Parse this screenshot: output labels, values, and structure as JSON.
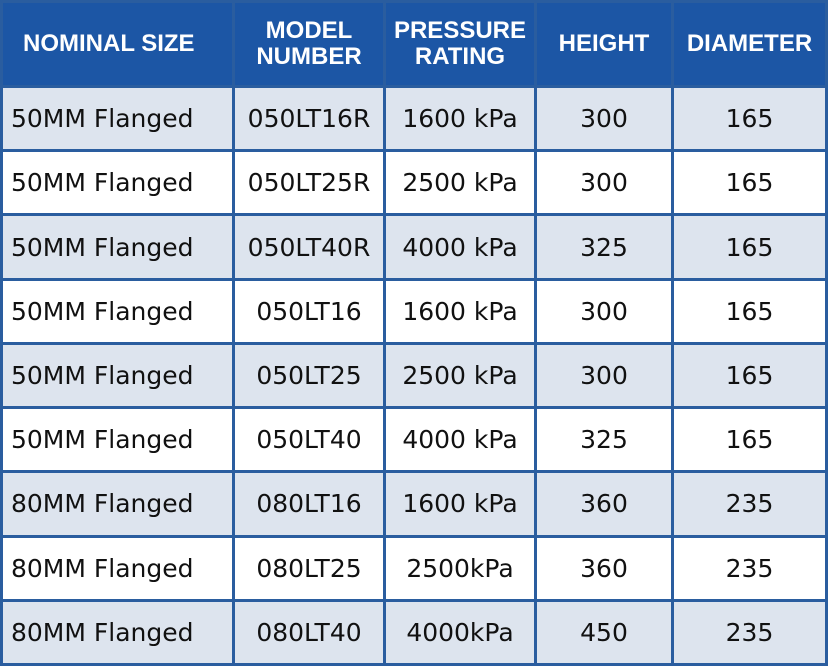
{
  "table": {
    "header": [
      "NOMINAL SIZE",
      "MODEL NUMBER",
      "PRESSURE RATING",
      "HEIGHT",
      "DIAMETER"
    ],
    "rows": [
      [
        "50MM Flanged",
        "050LT16R",
        "1600 kPa",
        "300",
        "165"
      ],
      [
        "50MM Flanged",
        "050LT25R",
        "2500 kPa",
        "300",
        "165"
      ],
      [
        "50MM Flanged",
        "050LT40R",
        "4000 kPa",
        "325",
        "165"
      ],
      [
        "50MM Flanged",
        "050LT16",
        "1600 kPa",
        "300",
        "165"
      ],
      [
        "50MM Flanged",
        "050LT25",
        "2500 kPa",
        "300",
        "165"
      ],
      [
        "50MM Flanged",
        "050LT40",
        "4000 kPa",
        "325",
        "165"
      ],
      [
        "80MM Flanged",
        "080LT16",
        "1600 kPa",
        "360",
        "235"
      ],
      [
        "80MM Flanged",
        "080LT25",
        "2500kPa",
        "360",
        "235"
      ],
      [
        "80MM Flanged",
        "080LT40",
        "4000kPa",
        "450",
        "235"
      ]
    ]
  }
}
